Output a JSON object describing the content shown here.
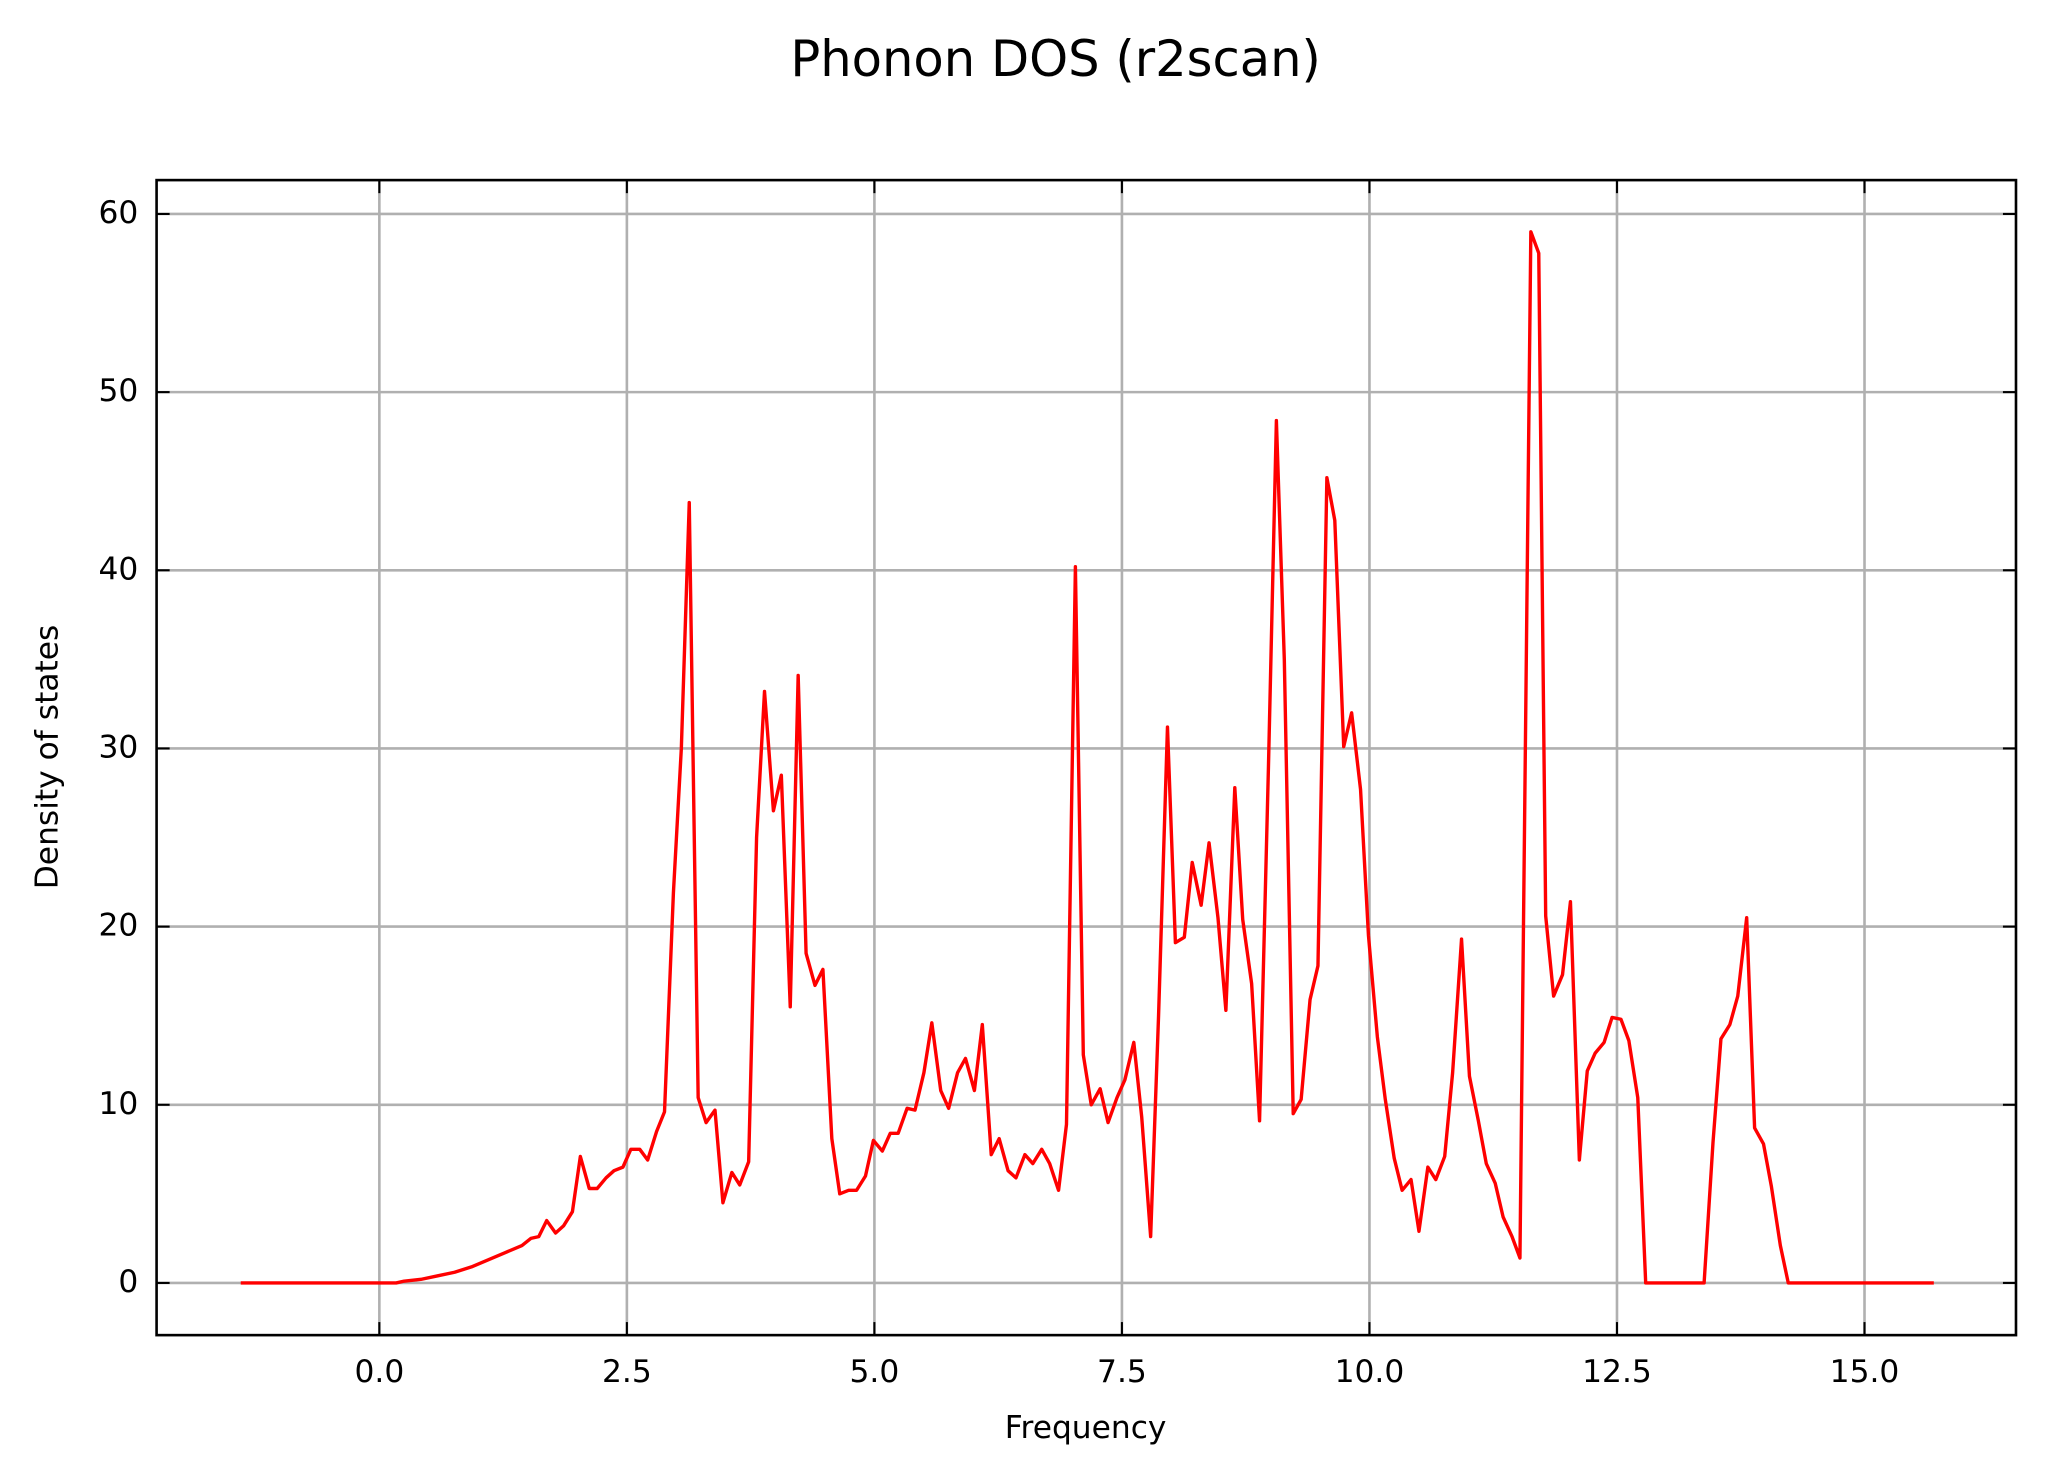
{
  "chart_data": {
    "type": "line",
    "title": "Phonon DOS (r2scan)",
    "x_label": "Frequency",
    "y_label": "Density of states",
    "x": [
      -1.4,
      0.0,
      0.17,
      0.25,
      0.42,
      0.59,
      0.76,
      0.93,
      1.1,
      1.27,
      1.44,
      1.53,
      1.61,
      1.69,
      1.78,
      1.86,
      1.95,
      2.03,
      2.12,
      2.2,
      2.29,
      2.37,
      2.46,
      2.54,
      2.63,
      2.71,
      2.8,
      2.88,
      2.97,
      3.05,
      3.13,
      3.22,
      3.3,
      3.39,
      3.47,
      3.56,
      3.64,
      3.73,
      3.81,
      3.89,
      3.98,
      4.06,
      4.15,
      4.23,
      4.31,
      4.4,
      4.48,
      4.57,
      4.65,
      4.74,
      4.82,
      4.91,
      4.99,
      5.08,
      5.16,
      5.24,
      5.33,
      5.41,
      5.5,
      5.58,
      5.67,
      5.75,
      5.84,
      5.92,
      6.01,
      6.09,
      6.18,
      6.26,
      6.35,
      6.43,
      6.52,
      6.6,
      6.69,
      6.77,
      6.86,
      6.94,
      7.03,
      7.11,
      7.19,
      7.28,
      7.36,
      7.45,
      7.53,
      7.62,
      7.7,
      7.79,
      7.87,
      7.96,
      8.04,
      8.13,
      8.21,
      8.3,
      8.38,
      8.47,
      8.55,
      8.64,
      8.72,
      8.81,
      8.89,
      8.98,
      9.06,
      9.14,
      9.23,
      9.31,
      9.4,
      9.48,
      9.57,
      9.65,
      9.74,
      9.82,
      9.91,
      9.99,
      10.08,
      10.16,
      10.25,
      10.33,
      10.42,
      10.5,
      10.59,
      10.67,
      10.76,
      10.84,
      10.93,
      11.01,
      11.1,
      11.18,
      11.27,
      11.35,
      11.44,
      11.52,
      11.63,
      11.71,
      11.78,
      11.86,
      11.95,
      12.03,
      12.12,
      12.2,
      12.28,
      12.37,
      12.45,
      12.54,
      12.62,
      12.71,
      12.79,
      13.38,
      13.47,
      13.55,
      13.64,
      13.72,
      13.81,
      13.89,
      13.98,
      14.06,
      14.15,
      14.23,
      15.7
    ],
    "series": [
      {
        "name": "DOS",
        "color": "#ff0000",
        "values": [
          0,
          0,
          0,
          0.1,
          0.2,
          0.4,
          0.6,
          0.9,
          1.3,
          1.7,
          2.1,
          2.5,
          2.6,
          3.5,
          2.8,
          3.2,
          4.0,
          7.1,
          5.3,
          5.3,
          5.9,
          6.3,
          6.5,
          7.5,
          7.5,
          6.9,
          8.5,
          9.6,
          21.9,
          30,
          43.8,
          10.4,
          9.0,
          9.7,
          4.5,
          6.2,
          5.5,
          6.8,
          25,
          33.2,
          26.5,
          28.5,
          15.5,
          34.1,
          18.5,
          16.7,
          17.6,
          8.1,
          5.0,
          5.2,
          5.2,
          6.0,
          8.0,
          7.4,
          8.4,
          8.4,
          9.8,
          9.7,
          11.8,
          14.6,
          10.8,
          9.8,
          11.8,
          12.6,
          10.8,
          14.5,
          7.2,
          8.1,
          6.3,
          5.9,
          7.2,
          6.7,
          7.5,
          6.7,
          5.2,
          8.9,
          40.2,
          12.8,
          10.0,
          10.9,
          9.0,
          10.4,
          11.4,
          13.5,
          9.3,
          2.6,
          15.0,
          31.2,
          19.1,
          19.4,
          23.6,
          21.2,
          24.7,
          20.5,
          15.3,
          27.8,
          20.4,
          16.8,
          9.1,
          29,
          48.4,
          35,
          9.5,
          10.3,
          15.9,
          17.8,
          45.2,
          42.8,
          30.1,
          32.0,
          27.7,
          19.5,
          13.8,
          10.3,
          7.0,
          5.2,
          5.8,
          2.9,
          6.5,
          5.8,
          7.1,
          11.8,
          19.3,
          11.6,
          9.1,
          6.7,
          5.6,
          3.7,
          2.6,
          1.4,
          59.0,
          57.8,
          20.6,
          16.1,
          17.3,
          21.4,
          6.9,
          11.9,
          12.9,
          13.5,
          14.9,
          14.8,
          13.6,
          10.4,
          0,
          0,
          7.9,
          13.7,
          14.5,
          16.1,
          20.5,
          8.7,
          7.8,
          5.4,
          2.1,
          0,
          0
        ]
      }
    ],
    "xlim": [
      -2.25,
      16.53
    ],
    "ylim": [
      -2.93,
      61.9
    ],
    "xticks": [
      {
        "value": 0,
        "label": "0.0"
      },
      {
        "value": 2.5,
        "label": "2.5"
      },
      {
        "value": 5,
        "label": "5.0"
      },
      {
        "value": 7.5,
        "label": "7.5"
      },
      {
        "value": 10,
        "label": "10.0"
      },
      {
        "value": 12.5,
        "label": "12.5"
      },
      {
        "value": 15,
        "label": "15.0"
      }
    ],
    "yticks": [
      0,
      10,
      20,
      30,
      40,
      50,
      60
    ],
    "grid": true
  }
}
